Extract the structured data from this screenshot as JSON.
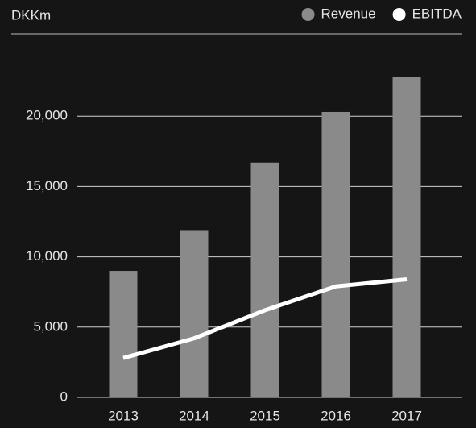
{
  "chart_data": {
    "type": "bar",
    "y_label": "DKKm",
    "categories": [
      "2013",
      "2014",
      "2015",
      "2016",
      "2017"
    ],
    "series": [
      {
        "name": "Revenue",
        "type": "bar",
        "color": "#8a8a8a",
        "values": [
          9000,
          11900,
          16700,
          20300,
          22800
        ]
      },
      {
        "name": "EBITDA",
        "type": "line",
        "color": "#ffffff",
        "values": [
          2800,
          4200,
          6200,
          7900,
          8400
        ]
      }
    ],
    "ylim": [
      0,
      25000
    ],
    "yticks": [
      0,
      {
        "value": 5000,
        "label": "5,000"
      },
      {
        "value": 10000,
        "label": "10,000"
      },
      {
        "value": 15000,
        "label": "15,000"
      },
      {
        "value": 20000,
        "label": "20,000"
      }
    ],
    "grid": true,
    "legend": "top-right"
  }
}
